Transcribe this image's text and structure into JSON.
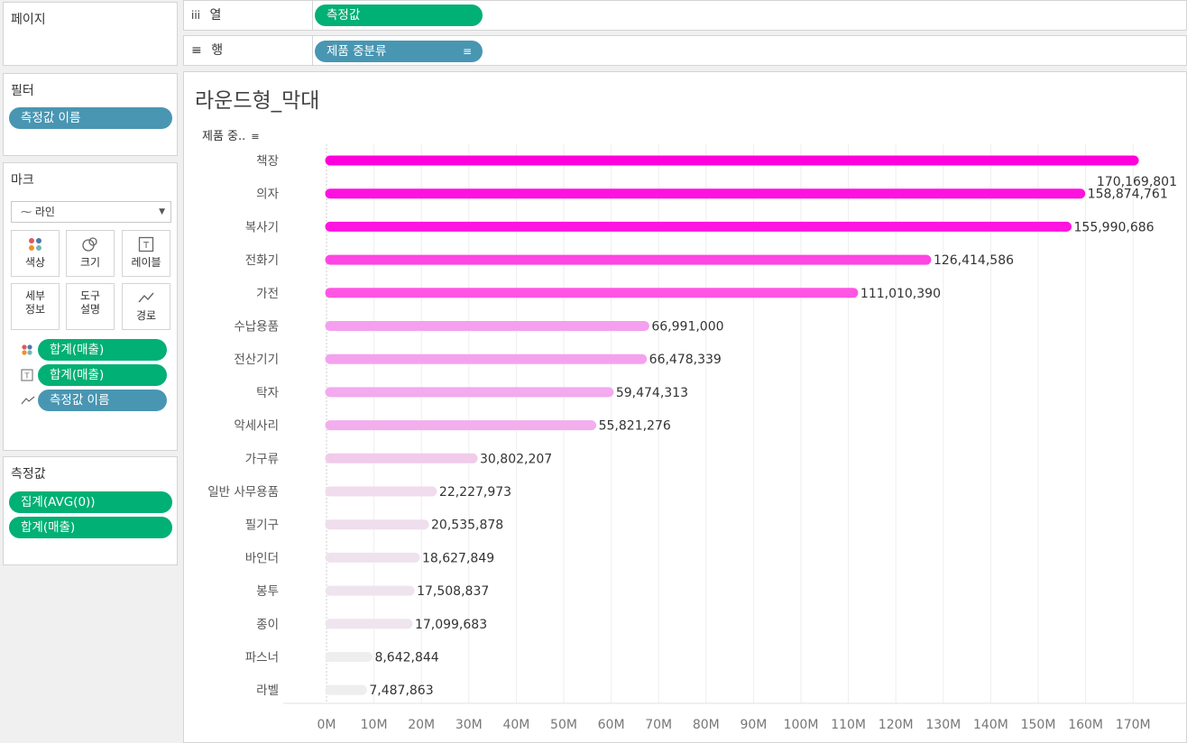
{
  "left_panel": {
    "pages": {
      "title": "페이지"
    },
    "filters": {
      "title": "필터",
      "pills": [
        "측정값 이름"
      ]
    },
    "marks": {
      "title": "마크",
      "mark_type": "라인",
      "buttons": [
        {
          "label": "색상",
          "icon": "color-icon"
        },
        {
          "label": "크기",
          "icon": "size-icon"
        },
        {
          "label": "레이블",
          "icon": "label-icon"
        },
        {
          "label": "세부\n정보",
          "icon": "detail-icon"
        },
        {
          "label": "도구\n설명",
          "icon": "tooltip-icon"
        },
        {
          "label": "경로",
          "icon": "path-icon"
        }
      ],
      "fields": [
        {
          "label": "합계(매출)",
          "icon": "color-dots-icon",
          "color": "green"
        },
        {
          "label": "합계(매출)",
          "icon": "text-label-icon",
          "color": "green"
        },
        {
          "label": "측정값 이름",
          "icon": "path-line-icon",
          "color": "blue"
        }
      ]
    },
    "measures": {
      "title": "측정값",
      "pills": [
        "집계(AVG(0))",
        "합계(매출)"
      ]
    }
  },
  "shelves": {
    "columns": {
      "icon": "iii",
      "label": "열",
      "pill": "측정값"
    },
    "rows": {
      "icon": "≡",
      "label": "행",
      "pill": "제품 중분류"
    }
  },
  "view": {
    "title": "라운드형_막대",
    "field_header": "제품 중.."
  },
  "chart_data": {
    "type": "bar",
    "categories": [
      "책장",
      "의자",
      "복사기",
      "전화기",
      "가전",
      "수납용품",
      "전산기기",
      "탁자",
      "악세사리",
      "가구류",
      "일반 사무용품",
      "필기구",
      "바인더",
      "봉투",
      "종이",
      "파스너",
      "라벨"
    ],
    "values": [
      170169801,
      158874761,
      155990686,
      126414586,
      111010390,
      66991000,
      66478339,
      59474313,
      55821276,
      30802207,
      22227973,
      20535878,
      18627849,
      17508837,
      17099683,
      8642844,
      7487863
    ],
    "value_labels": [
      "170,169,801",
      "158,874,761",
      "155,990,686",
      "126,414,586",
      "111,010,390",
      "66,991,000",
      "66,478,339",
      "59,474,313",
      "55,821,276",
      "30,802,207",
      "22,227,973",
      "20,535,878",
      "18,627,849",
      "17,508,837",
      "17,099,683",
      "8,642,844",
      "7,487,863"
    ],
    "colors": [
      "#ff00dd",
      "#ff11df",
      "#ff14e0",
      "#ff45e3",
      "#ff55e4",
      "#f5a0ee",
      "#f5a2ee",
      "#f3aaee",
      "#f3aeed",
      "#f1cbea",
      "#f0dcec",
      "#efdeed",
      "#eee2ee",
      "#eee4ee",
      "#eee5ee",
      "#eeeeee",
      "#eeeeee"
    ],
    "xticks": [
      "0M",
      "10M",
      "20M",
      "30M",
      "40M",
      "50M",
      "60M",
      "70M",
      "80M",
      "90M",
      "100M",
      "110M",
      "120M",
      "130M",
      "140M",
      "150M",
      "160M",
      "170M"
    ],
    "xlim": [
      0,
      172000000
    ],
    "grid": true
  }
}
